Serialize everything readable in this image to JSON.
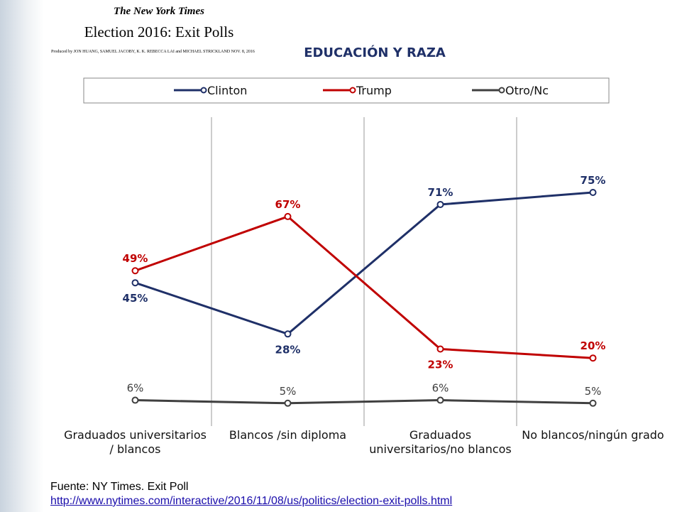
{
  "header": {
    "masthead": "The New York Times",
    "title": "Election 2016: Exit Polls",
    "byline": "Produced by JON HUANG, SAMUEL JACOBY, K. K. REBECCA LAI and MICHAEL STRICKLAND   NOV. 8, 2016"
  },
  "chart_data": {
    "type": "line",
    "title": "EDUCACIÓN Y RAZA",
    "categories": [
      "Graduados universitarios / blancos",
      "Blancos /sin diploma",
      "Graduados universitarios/no blancos",
      "No blancos/ningún grado"
    ],
    "series": [
      {
        "name": "Clinton",
        "color": "#1f3068",
        "values": [
          45,
          28,
          71,
          75
        ],
        "value_labels": [
          "45%",
          "28%",
          "71%",
          "75%"
        ]
      },
      {
        "name": "Trump",
        "color": "#c00000",
        "values": [
          49,
          67,
          23,
          20
        ],
        "value_labels": [
          "49%",
          "67%",
          "23%",
          "20%"
        ]
      },
      {
        "name": "Otro/Nc",
        "color": "#404040",
        "values": [
          6,
          5,
          6,
          5
        ],
        "value_labels": [
          "6%",
          "5%",
          "6%",
          "5%"
        ]
      }
    ],
    "ylim": [
      0,
      100
    ],
    "legend": "top"
  },
  "footer": {
    "source": "Fuente: NY Times. Exit Poll",
    "url": "http://www.nytimes.com/interactive/2016/11/08/us/politics/election-exit-polls.html"
  }
}
